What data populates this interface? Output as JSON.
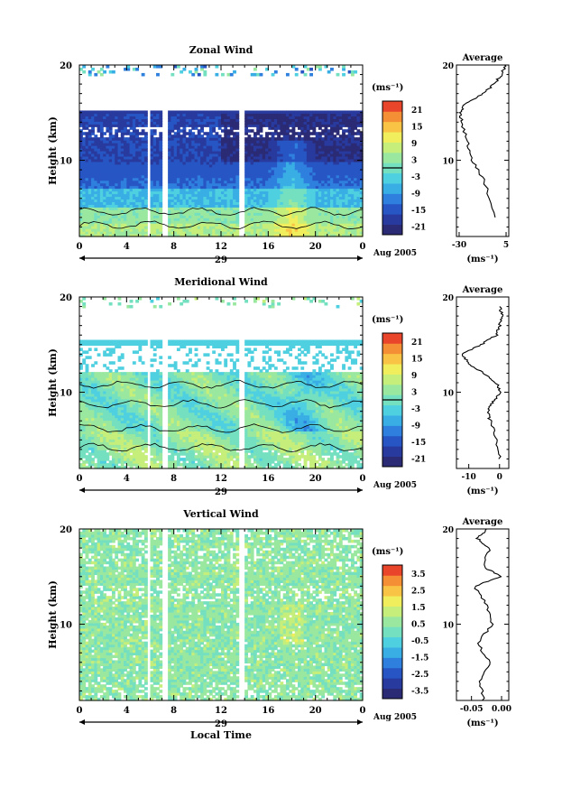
{
  "chart_data": [
    {
      "type": "heatmap",
      "title": "Zonal Wind",
      "ylabel": "Height (km)",
      "yticks": [
        "20",
        "10"
      ],
      "ylim": [
        2,
        20
      ],
      "xticks": [
        "0",
        "4",
        "8",
        "12",
        "16",
        "20",
        "0"
      ],
      "xlim": [
        0,
        24
      ],
      "date_day": "29",
      "date_label": "Aug 2005",
      "colorbar": {
        "unit": "(ms⁻¹)",
        "ticks": [
          "21",
          "15",
          "9",
          "3",
          "-3",
          "-9",
          "-15",
          "-21"
        ],
        "range": [
          -24,
          24
        ],
        "zero_line": true
      },
      "profile": {
        "title": "Average",
        "yticks": [
          "20",
          "10"
        ],
        "xticks": [
          "-30",
          "5"
        ],
        "xlim": [
          -32,
          7
        ],
        "xlabel": "(ms⁻¹)",
        "points": [
          [
            4,
            -2
          ],
          [
            8,
            -12
          ],
          [
            10,
            -20
          ],
          [
            12,
            -24
          ],
          [
            14,
            -28
          ],
          [
            15,
            -29.5
          ],
          [
            16,
            -25
          ],
          [
            17,
            -12
          ],
          [
            18,
            -4
          ],
          [
            19,
            2
          ],
          [
            20,
            4
          ]
        ]
      },
      "gaps_hours": [
        [
          5.8,
          6.1
        ],
        [
          6.9,
          7.4
        ],
        [
          13.6,
          14
        ]
      ]
    },
    {
      "type": "heatmap",
      "title": "Meridional Wind",
      "ylabel": "Height (km)",
      "yticks": [
        "20",
        "10"
      ],
      "ylim": [
        2,
        20
      ],
      "xticks": [
        "0",
        "4",
        "8",
        "12",
        "16",
        "20",
        "0"
      ],
      "xlim": [
        0,
        24
      ],
      "date_day": "29",
      "date_label": "Aug 2005",
      "colorbar": {
        "unit": "(ms⁻¹)",
        "ticks": [
          "21",
          "15",
          "9",
          "3",
          "-3",
          "-9",
          "-15",
          "-21"
        ],
        "range": [
          -24,
          24
        ],
        "zero_line": true
      },
      "profile": {
        "title": "Average",
        "yticks": [
          "20",
          "10"
        ],
        "xticks": [
          "-10",
          "0"
        ],
        "xlim": [
          -14,
          3
        ],
        "xlabel": "(ms⁻¹)",
        "points": [
          [
            3,
            0
          ],
          [
            5,
            -1
          ],
          [
            7,
            -3
          ],
          [
            8,
            -4
          ],
          [
            9,
            -2
          ],
          [
            10,
            0
          ],
          [
            11,
            -1
          ],
          [
            12,
            -5
          ],
          [
            13,
            -10
          ],
          [
            14,
            -12
          ],
          [
            15,
            -6
          ],
          [
            16,
            -1
          ],
          [
            17,
            0
          ],
          [
            18,
            1
          ],
          [
            19,
            0
          ]
        ]
      },
      "gaps_hours": [
        [
          5.8,
          6.1
        ],
        [
          6.9,
          7.4
        ],
        [
          13.6,
          14
        ]
      ]
    },
    {
      "type": "heatmap",
      "title": "Vertical Wind",
      "xlabel": "Local Time",
      "ylabel": "Height (km)",
      "yticks": [
        "20",
        "10"
      ],
      "ylim": [
        2,
        20
      ],
      "xticks": [
        "0",
        "4",
        "8",
        "12",
        "16",
        "20",
        "0"
      ],
      "xlim": [
        0,
        24
      ],
      "date_day": "29",
      "date_label": "Aug 2005",
      "colorbar": {
        "unit": "(ms⁻¹)",
        "ticks": [
          "3.5",
          "2.5",
          "1.5",
          "0.5",
          "-0.5",
          "-1.5",
          "-2.5",
          "-3.5"
        ],
        "range": [
          -4,
          4
        ],
        "zero_line": false
      },
      "profile": {
        "title": "Average",
        "yticks": [
          "20",
          "10"
        ],
        "xticks": [
          "-0.05",
          "0.00"
        ],
        "xlim": [
          -0.075,
          0.012
        ],
        "xlabel": "(ms⁻¹)",
        "points": [
          [
            2,
            -0.03
          ],
          [
            4,
            -0.035
          ],
          [
            6,
            -0.02
          ],
          [
            8,
            -0.04
          ],
          [
            10,
            -0.015
          ],
          [
            12,
            -0.025
          ],
          [
            14,
            -0.045
          ],
          [
            15,
            0.0
          ],
          [
            16,
            -0.03
          ],
          [
            18,
            -0.02
          ],
          [
            19,
            -0.04
          ],
          [
            20,
            -0.025
          ]
        ]
      },
      "gaps_hours": [
        [
          5.8,
          6.1
        ],
        [
          6.9,
          7.4
        ],
        [
          13.6,
          14
        ]
      ]
    }
  ]
}
